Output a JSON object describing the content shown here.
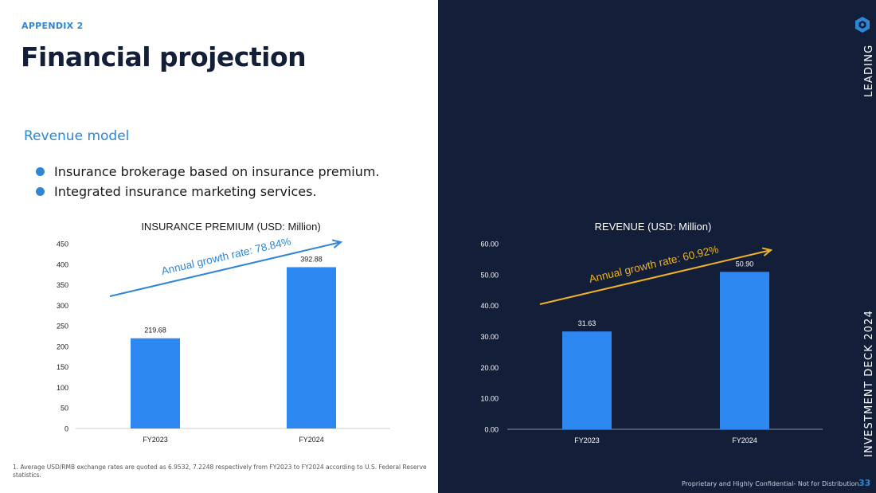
{
  "header": {
    "section": "APPENDIX 2",
    "title": "Financial projection"
  },
  "revenue_model": {
    "heading": "Revenue model",
    "bullets": [
      "Insurance brokerage based on insurance premium.",
      "Integrated insurance marketing services."
    ]
  },
  "footnote": "1. Average USD/RMB exchange rates are quoted as 6.9532, 7.2248 respectively from FY2023 to FY2024 according to U.S. Federal Reserve statistics.",
  "sidebar": {
    "top_label": "LEADING",
    "bottom_label": "INVESTMENT DECK 2024"
  },
  "footer": {
    "confidential": "Proprietary and Highly Confidential- Not for Distribution",
    "page_number": "33"
  },
  "colors": {
    "accent": "#2e86d6",
    "bar": "#2c87f0",
    "dark_bg": "#131e38",
    "growth_arrow_dark": "#f0b323"
  },
  "icons": {
    "logo": "hexagon-logo-icon"
  },
  "chart_data": [
    {
      "type": "bar",
      "title": "INSURANCE PREMIUM (USD: Million)",
      "categories": [
        "FY2023",
        "FY2024"
      ],
      "values": [
        219.68,
        392.88
      ],
      "value_labels": [
        "219.68",
        "392.88"
      ],
      "ylim": [
        0,
        450
      ],
      "yticks": [
        "0",
        "50",
        "100",
        "150",
        "200",
        "250",
        "300",
        "350",
        "400",
        "450"
      ],
      "annotation": "Annual growth rate: 78.84%",
      "grid": false
    },
    {
      "type": "bar",
      "title": "REVENUE (USD: Million)",
      "categories": [
        "FY2023",
        "FY2024"
      ],
      "values": [
        31.63,
        50.9
      ],
      "value_labels": [
        "31.63",
        "50.90"
      ],
      "ylim": [
        0,
        60
      ],
      "yticks": [
        "0.00",
        "10.00",
        "20.00",
        "30.00",
        "40.00",
        "50.00",
        "60.00"
      ],
      "annotation": "Annual growth rate: 60.92%",
      "grid": false
    }
  ]
}
